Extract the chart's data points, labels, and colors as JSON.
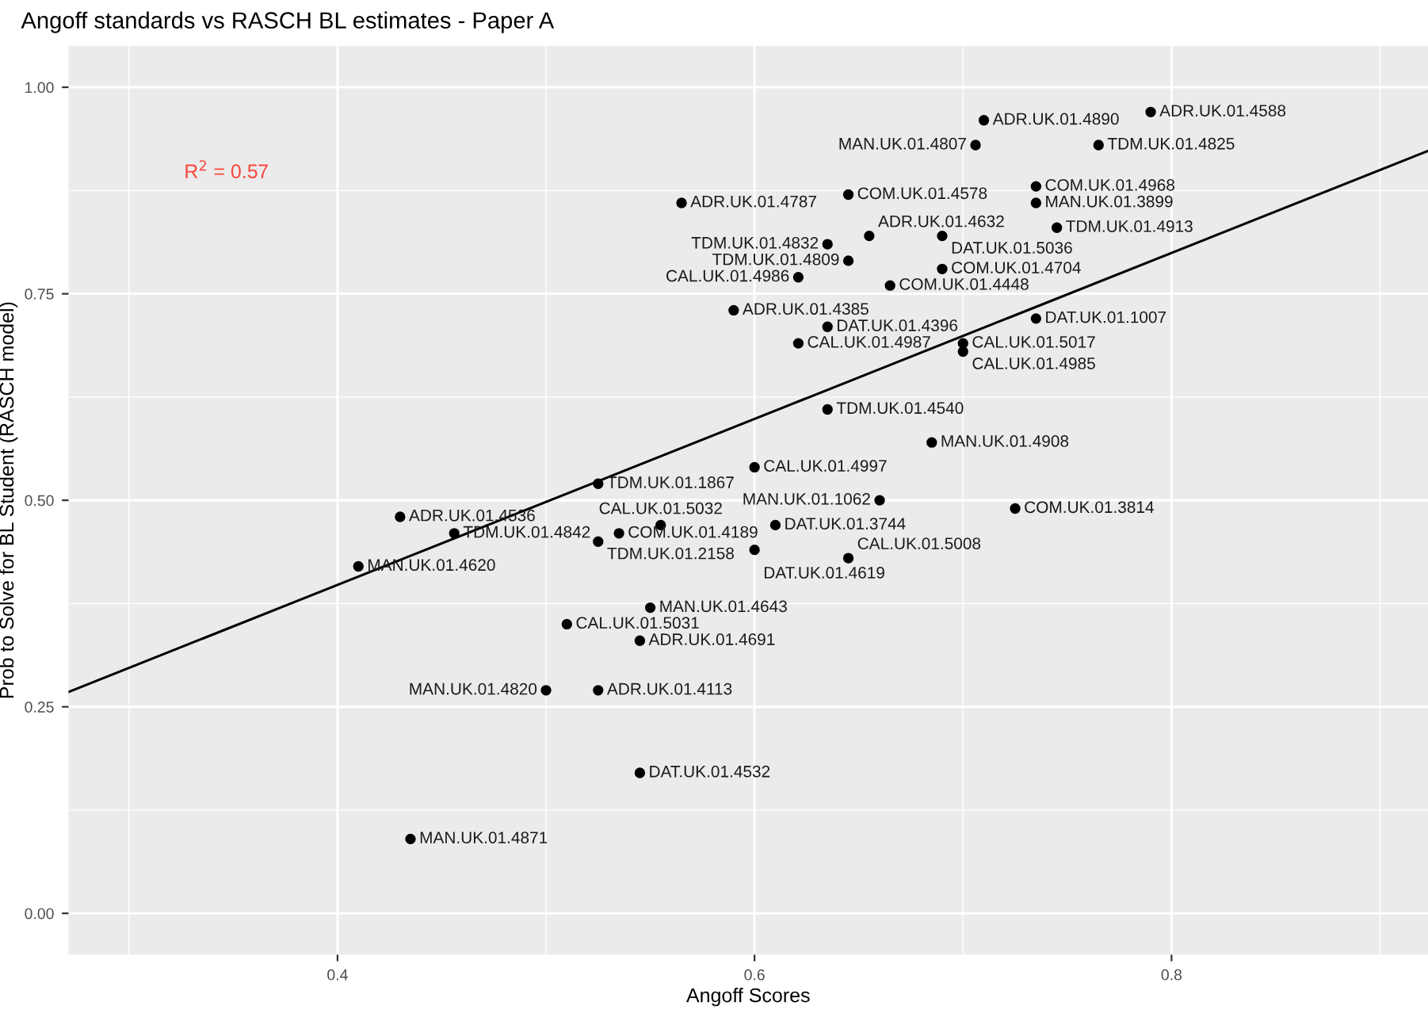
{
  "chart_data": {
    "type": "scatter",
    "title": "Angoff standards vs RASCH BL estimates - Paper A",
    "xlabel": "Angoff Scores",
    "ylabel": "Prob to Solve for BL Student (RASCH model)",
    "annotations": [
      "R$^{2}$ = 0.57"
    ],
    "xlim": [
      0.271,
      0.923
    ],
    "ylim": [
      -0.05,
      1.05
    ],
    "xticks": [
      0.4,
      0.6,
      0.8
    ],
    "yticks": [
      {
        "value": 0,
        "label": "0.00"
      },
      {
        "value": 0.25,
        "label": "0.25"
      },
      {
        "value": 0.5,
        "label": "0.50"
      },
      {
        "value": 0.75,
        "label": "0.75"
      },
      {
        "value": 1,
        "label": "1.00"
      }
    ],
    "grid": true,
    "marker": "circle",
    "series": [
      {
        "color": "#000000",
        "x": [
          0.71,
          0.79,
          0.706,
          0.765,
          0.735,
          0.735,
          0.745,
          0.565,
          0.645,
          0.655,
          0.69,
          0.635,
          0.645,
          0.621,
          0.69,
          0.665,
          0.59,
          0.635,
          0.621,
          0.735,
          0.7,
          0.7,
          0.635,
          0.685,
          0.6,
          0.525,
          0.66,
          0.725,
          0.43,
          0.456,
          0.41,
          0.525,
          0.535,
          0.555,
          0.61,
          0.6,
          0.645,
          0.55,
          0.51,
          0.545,
          0.5,
          0.525,
          0.545,
          0.435
        ],
        "values": [
          0.96,
          0.97,
          0.93,
          0.93,
          0.88,
          0.86,
          0.83,
          0.86,
          0.87,
          0.82,
          0.82,
          0.81,
          0.79,
          0.77,
          0.78,
          0.76,
          0.73,
          0.71,
          0.69,
          0.72,
          0.69,
          0.68,
          0.61,
          0.57,
          0.54,
          0.52,
          0.5,
          0.49,
          0.48,
          0.46,
          0.42,
          0.45,
          0.46,
          0.47,
          0.47,
          0.44,
          0.43,
          0.37,
          0.35,
          0.33,
          0.27,
          0.27,
          0.17,
          0.09
        ],
        "value_labels": [
          "ADR.UK.01.4890",
          "ADR.UK.01.4588",
          "MAN.UK.01.4807",
          "TDM.UK.01.4825",
          "COM.UK.01.4968",
          "MAN.UK.01.3899",
          "TDM.UK.01.4913",
          "ADR.UK.01.4787",
          "COM.UK.01.4578",
          "ADR.UK.01.4632",
          "DAT.UK.01.5036",
          "TDM.UK.01.4832",
          "TDM.UK.01.4809",
          "CAL.UK.01.4986",
          "COM.UK.01.4704",
          "COM.UK.01.4448",
          "ADR.UK.01.4385",
          "DAT.UK.01.4396",
          "CAL.UK.01.4987",
          "DAT.UK.01.1007",
          "CAL.UK.01.5017",
          "CAL.UK.01.4985",
          "TDM.UK.01.4540",
          "MAN.UK.01.4908",
          "CAL.UK.01.4997",
          "TDM.UK.01.1867",
          "MAN.UK.01.1062",
          "COM.UK.01.3814",
          "ADR.UK.01.4536",
          "TDM.UK.01.4842",
          "MAN.UK.01.4620",
          "TDM.UK.01.2158",
          "COM.UK.01.4189",
          "CAL.UK.01.5032",
          "DAT.UK.01.3744",
          "DAT.UK.01.4619",
          "CAL.UK.01.5008",
          "MAN.UK.01.4643",
          "CAL.UK.01.5031",
          "ADR.UK.01.4691",
          "MAN.UK.01.4820",
          "ADR.UK.01.4113",
          "DAT.UK.01.4532",
          "MAN.UK.01.4871"
        ]
      },
      {
        "type": "line",
        "color": "#000000",
        "line_style": "solid",
        "marker": "none",
        "x": [
          0.271,
          0.923
        ],
        "values": [
          0.268,
          0.923
        ]
      }
    ]
  }
}
